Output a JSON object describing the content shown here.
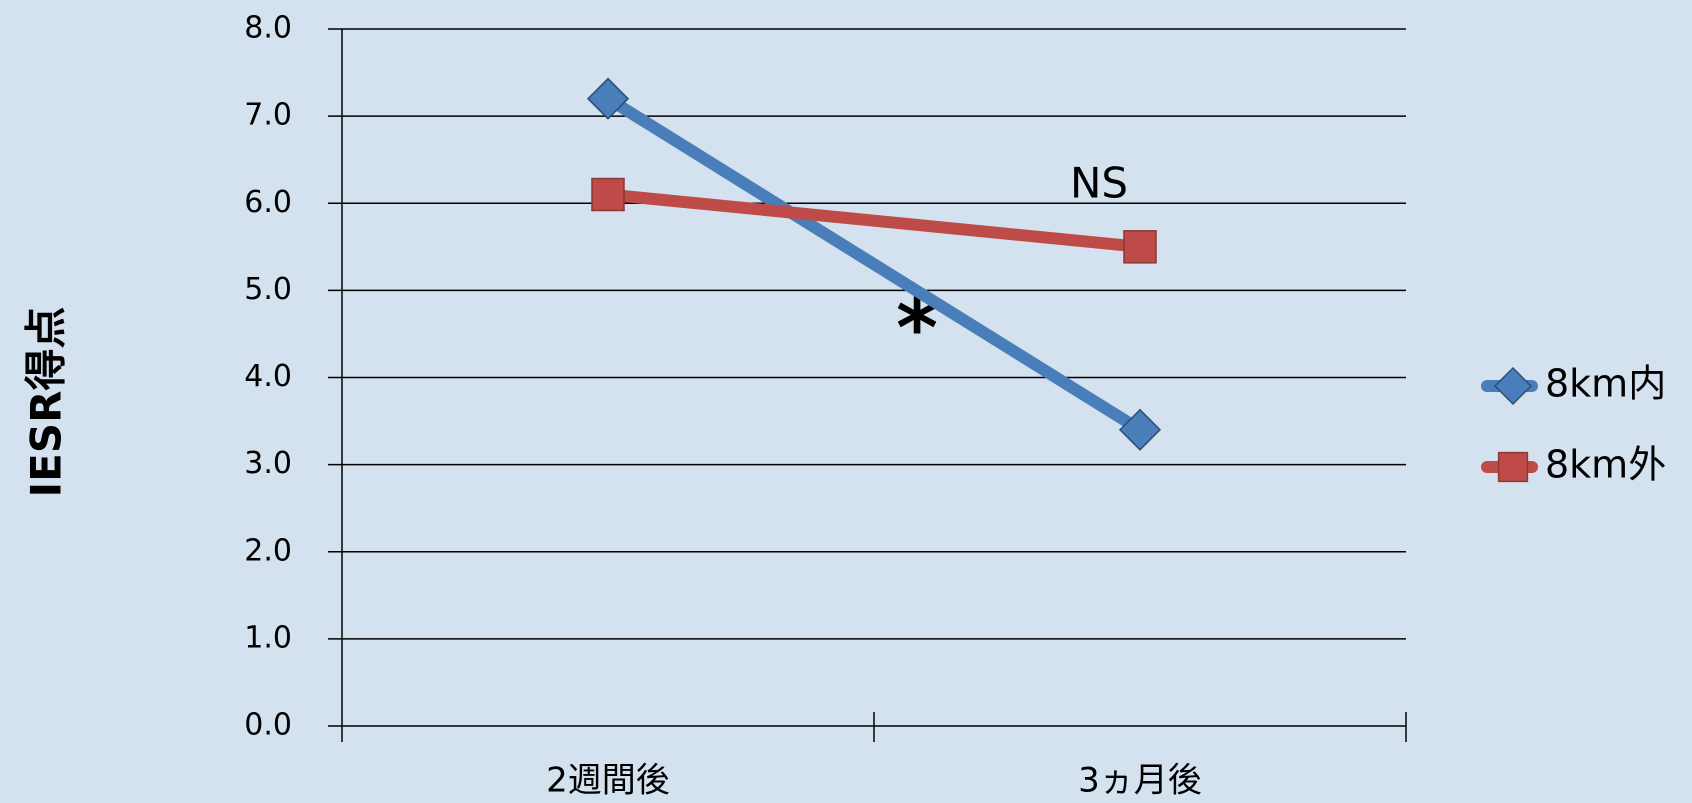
{
  "chart_data": {
    "type": "line",
    "y_label": "IESR得点",
    "categories": [
      "2週間後",
      "3ヵ月後"
    ],
    "series": [
      {
        "name": "8km内",
        "color": "#4a7ebb",
        "marker": "diamond",
        "values": [
          7.2,
          3.4
        ]
      },
      {
        "name": "8km外",
        "color": "#be4b48",
        "marker": "square",
        "values": [
          6.1,
          5.5
        ]
      }
    ],
    "annotations": [
      "NS",
      "*"
    ],
    "ylim": [
      0,
      8
    ],
    "yticks": [
      {
        "value": 0,
        "label": "0.0"
      },
      {
        "value": 1,
        "label": "1.0"
      },
      {
        "value": 2,
        "label": "2.0"
      },
      {
        "value": 3,
        "label": "3.0"
      },
      {
        "value": 4,
        "label": "4.0"
      },
      {
        "value": 5,
        "label": "5.0"
      },
      {
        "value": 6,
        "label": "6.0"
      },
      {
        "value": 7,
        "label": "7.0"
      },
      {
        "value": 8,
        "label": "8.0"
      }
    ],
    "grid": true,
    "legend": "right"
  }
}
